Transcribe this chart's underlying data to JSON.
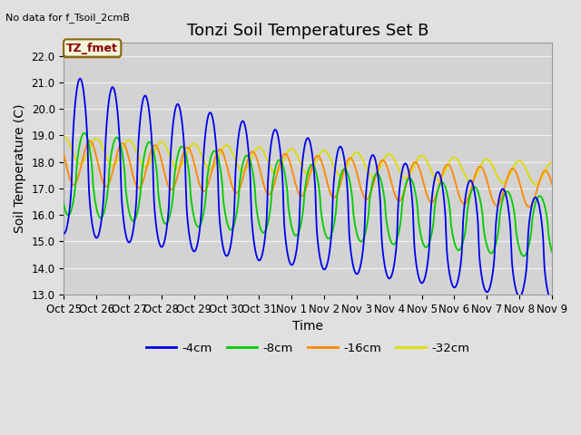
{
  "title": "Tonzi Soil Temperatures Set B",
  "no_data_text": "No data for f_Tsoil_2cmB",
  "tz_label": "TZ_fmet",
  "xlabel": "Time",
  "ylabel": "Soil Temperature (C)",
  "ylim": [
    13.0,
    22.5
  ],
  "yticks": [
    13.0,
    14.0,
    15.0,
    16.0,
    17.0,
    18.0,
    19.0,
    20.0,
    21.0,
    22.0
  ],
  "xtick_labels": [
    "Oct 25",
    "Oct 26",
    "Oct 27",
    "Oct 28",
    "Oct 29",
    "Oct 30",
    "Oct 31",
    "Nov 1",
    "Nov 2",
    "Nov 3",
    "Nov 4",
    "Nov 5",
    "Nov 6",
    "Nov 7",
    "Nov 8",
    "Nov 9"
  ],
  "colors": {
    "4cm": "#0000ee",
    "8cm": "#00cc00",
    "16cm": "#ff8800",
    "32cm": "#dddd00"
  },
  "legend_labels": [
    "-4cm",
    "-8cm",
    "-16cm",
    "-32cm"
  ],
  "background_color": "#e0e0e0",
  "plot_bg_color": "#d3d3d3",
  "grid_color": "#f0f0f0",
  "title_fontsize": 13,
  "axis_fontsize": 10,
  "tick_fontsize": 8.5
}
